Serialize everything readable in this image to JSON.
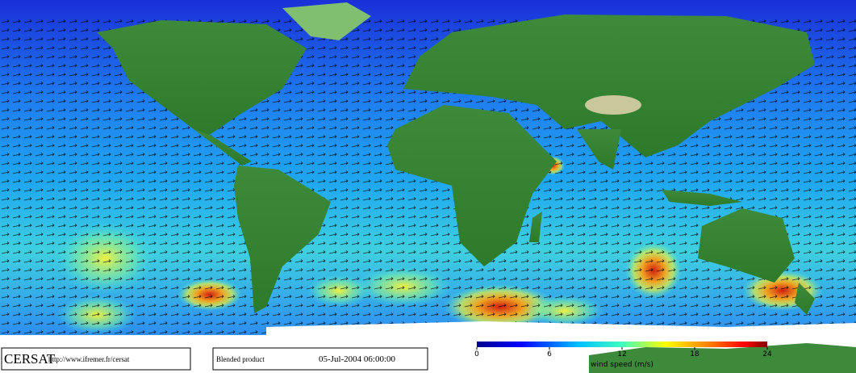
{
  "footer": {
    "logo": "CERSAT",
    "url": "http://www.ifremer.fr/cersat",
    "product": "Blended product",
    "date": "05-Jul-2004 06:00:00"
  },
  "colorbar": {
    "label": "wind speed (m/s)",
    "lim": [
      0,
      24
    ],
    "ticks": [
      0,
      6,
      12,
      18,
      24
    ]
  }
}
